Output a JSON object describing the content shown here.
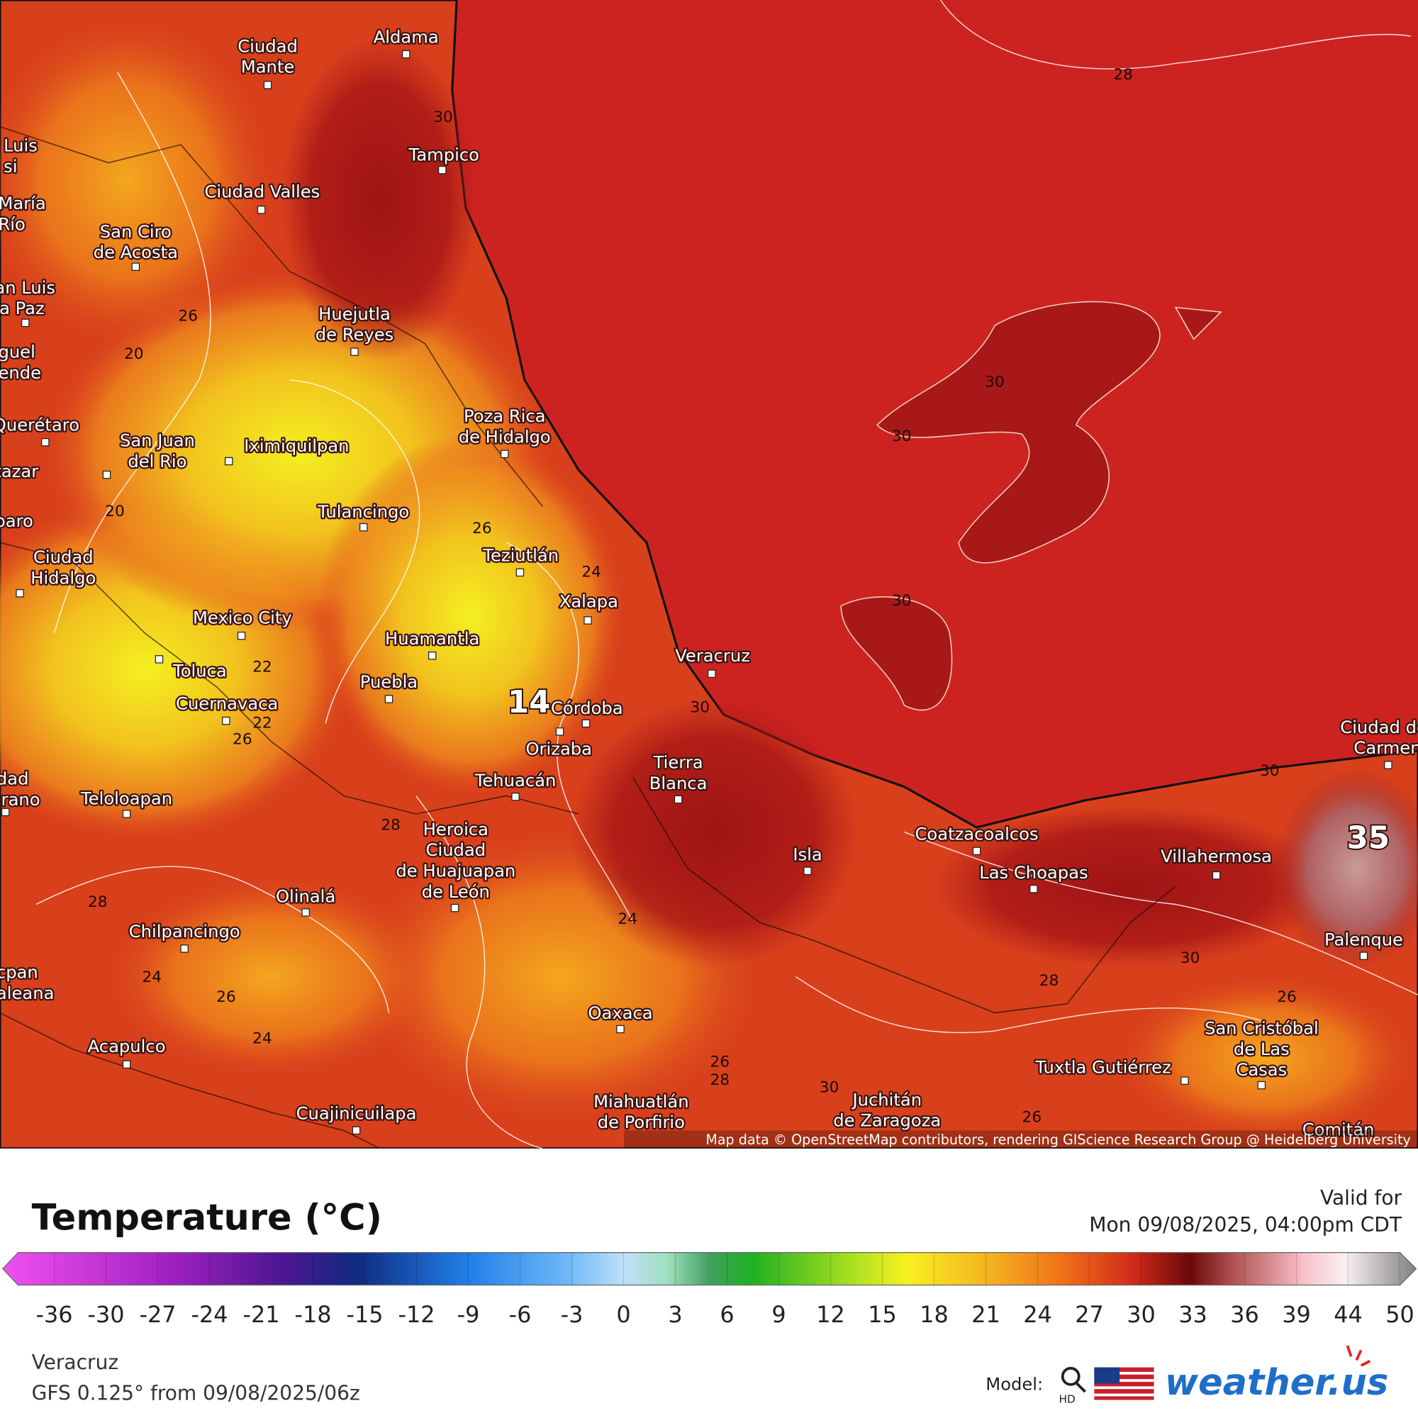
{
  "map": {
    "cities": [
      [
        "Ciudad",
        "Mante"
      ],
      [
        "Aldama"
      ],
      [
        "Tampico"
      ],
      [
        "Ciudad Valles"
      ],
      [
        "San Ciro",
        "de Acosta"
      ],
      [
        "Huejutla",
        "de Reyes"
      ],
      [
        "Poza Rica",
        "de Hidalgo"
      ],
      [
        "Iximiquilpan"
      ],
      [
        "San Juan",
        "del Rio"
      ],
      [
        "Querétaro"
      ],
      [
        "Tulancingo"
      ],
      [
        "Teziutlán"
      ],
      [
        "Xalapa"
      ],
      [
        "Ciudad",
        "Hidalgo"
      ],
      [
        "Mexico City"
      ],
      [
        "Huamantla"
      ],
      [
        "Veracruz"
      ],
      [
        "Toluca"
      ],
      [
        "Puebla"
      ],
      [
        "Córdoba"
      ],
      [
        "Cuernavaca"
      ],
      [
        "Orizaba"
      ],
      [
        "Tehuacán"
      ],
      [
        "Tierra",
        "Blanca"
      ],
      [
        "Teloloapan"
      ],
      [
        "Heroica",
        "Ciudad",
        "de Huajuapan",
        "de León"
      ],
      [
        "Isla"
      ],
      [
        "Coatzacoalcos"
      ],
      [
        "Las Choapas"
      ],
      [
        "Villahermosa"
      ],
      [
        "Olinalá"
      ],
      [
        "Chilpancingo"
      ],
      [
        "Ciudad del",
        "Carmen"
      ],
      [
        "Palenque"
      ],
      [
        "Oaxaca"
      ],
      [
        "Acapulco"
      ],
      [
        "San Cristóbal",
        "de Las",
        "Casas"
      ],
      [
        "Tuxtla Gutiérrez"
      ],
      [
        "Miahuatlán",
        "de Porfirio"
      ],
      [
        "Juchitán",
        "de Zaragoza"
      ],
      [
        "Cuajinicuilapa"
      ],
      [
        "Luis",
        "si"
      ],
      [
        "María",
        "Río"
      ],
      [
        "an Luis",
        "la Paz"
      ],
      [
        "guel",
        "ende"
      ],
      [
        "tazar"
      ],
      [
        "paro"
      ],
      [
        "dad",
        "irano"
      ],
      [
        "cpan",
        "aleana"
      ],
      [
        "Comitán"
      ]
    ],
    "contours": [
      28,
      30,
      26,
      20,
      30,
      30,
      20,
      26,
      24,
      30,
      22,
      30,
      22,
      26,
      28,
      28,
      24,
      24,
      28,
      26,
      26,
      24,
      26,
      28,
      30,
      26,
      30,
      30
    ],
    "extremes": [
      14,
      35
    ],
    "attribution": "Map data © OpenStreetMap contributors, rendering GIScience Research Group @ Heidelberg University"
  },
  "legend": {
    "title": "Temperature (°C)",
    "valid_label": "Valid for",
    "valid_time": "Mon 09/08/2025, 04:00pm CDT",
    "ticks": [
      -36,
      -30,
      -27,
      -24,
      -21,
      -18,
      -15,
      -12,
      -9,
      -6,
      -3,
      0,
      3,
      6,
      9,
      12,
      15,
      18,
      21,
      24,
      27,
      30,
      33,
      36,
      39,
      44,
      50
    ]
  },
  "footer": {
    "location": "Veracruz",
    "model_run": "GFS 0.125° from 09/08/2025/06z",
    "model_label": "Model:",
    "hd": "HD",
    "brand": "weather.us"
  }
}
